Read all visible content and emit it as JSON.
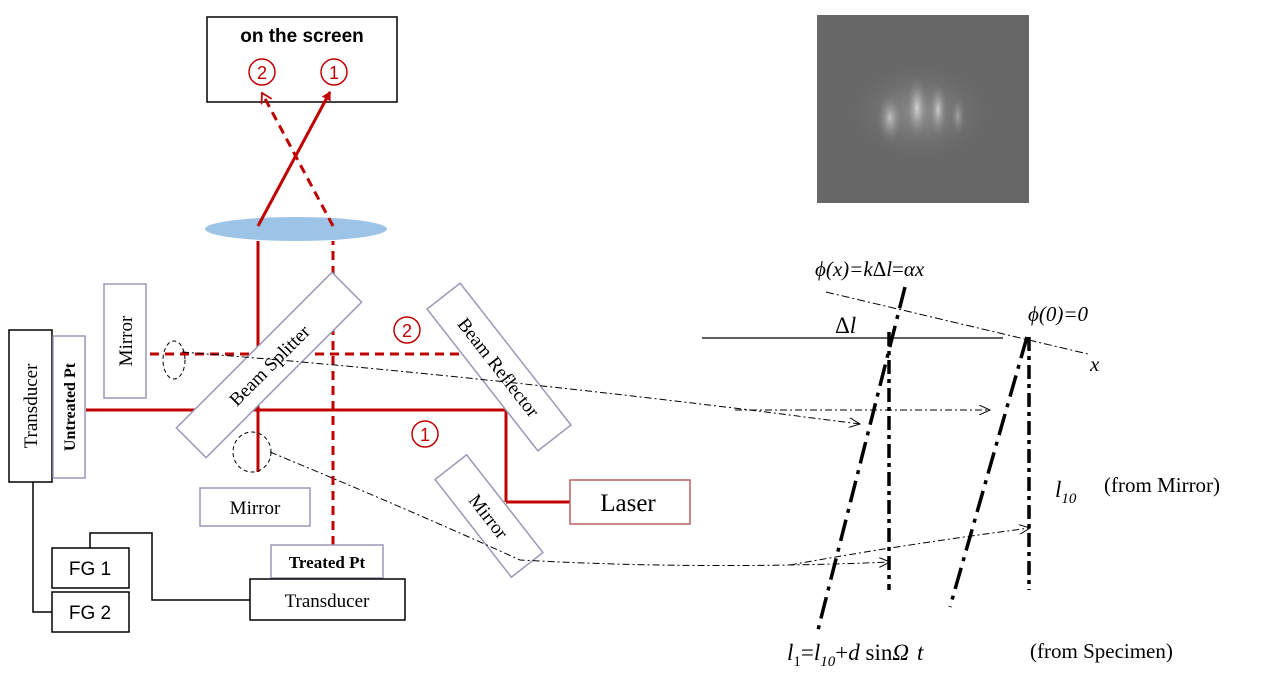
{
  "screen_label": "on the screen",
  "beam_marker_1": "1",
  "beam_marker_2": "2",
  "components": {
    "mirror_top_left": "Mirror",
    "mirror_bottom": "Mirror",
    "mirror_right": "Mirror",
    "beam_splitter": "Beam Splitter",
    "beam_reflector": "Beam Reflector",
    "laser": "Laser",
    "transducer_left": "Transducer",
    "transducer_bottom": "Transducer",
    "untreated_pt": "Untreated Pt",
    "treated_pt": "Treated Pt",
    "fg1": "FG 1",
    "fg2": "FG 2"
  },
  "colors": {
    "beam": "#c00000",
    "lens": "#9dc3e6",
    "box_border": "#9a98b8"
  },
  "phase": {
    "phi_x_pre": "ϕ(x)=",
    "phi_x_k": "k",
    "phi_x_mid": "Δ",
    "phi_x_l": "l",
    "phi_x_eq": "=",
    "phi_x_alpha": "α",
    "phi_x_x": "x",
    "phi_zero": "ϕ(0)=0",
    "delta": "Δ",
    "delta_l": "l",
    "x_axis": "x",
    "l10_l": "l",
    "l10_sub": "10",
    "from_mirror": "(from Mirror)",
    "l1_l": "l",
    "l1_sub": "1",
    "l1_eq": "=",
    "l1_l10": "l",
    "l1_l10_sub": "10",
    "l1_plus": "+",
    "l1_d": "d",
    "l1_sin": " sin",
    "l1_omega": "Ω",
    "l1_t": "t",
    "from_specimen": "(from Specimen)"
  }
}
